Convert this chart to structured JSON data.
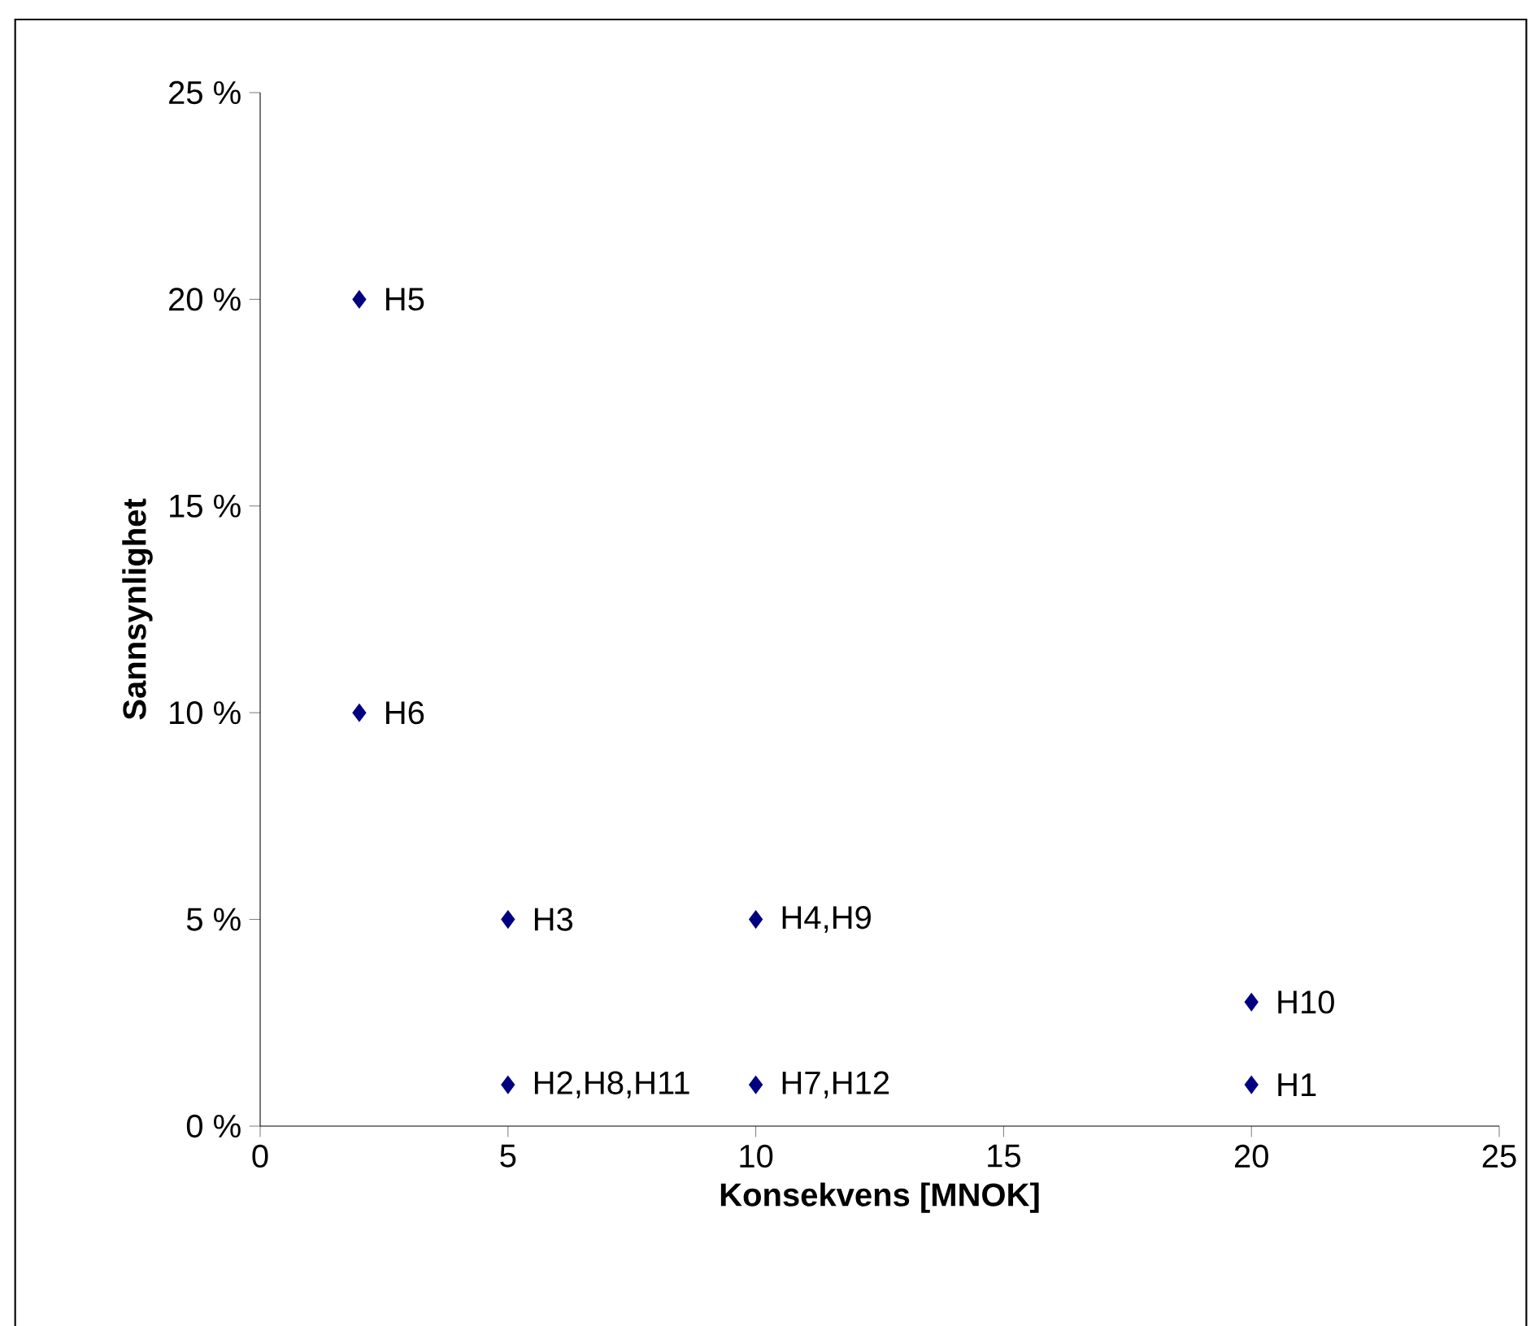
{
  "chart_data": {
    "type": "scatter",
    "xlabel": "Konsekvens [MNOK]",
    "ylabel": "Sannsynlighet",
    "x": [
      2,
      2,
      5,
      10,
      20,
      5,
      10,
      20
    ],
    "values": [
      20,
      10,
      5,
      5,
      3,
      1,
      1,
      1
    ],
    "color": "#000080",
    "marker": "diamond",
    "xlim": [
      0,
      25
    ],
    "ylim": [
      0,
      25
    ],
    "xticks": [
      0,
      5,
      10,
      15,
      20,
      25
    ],
    "yticks": [
      {
        "value": 0,
        "label": "0 %"
      },
      {
        "value": 5,
        "label": "5 %"
      },
      {
        "value": 10,
        "label": "10 %"
      },
      {
        "value": 15,
        "label": "15 %"
      },
      {
        "value": 20,
        "label": "20 %"
      },
      {
        "value": 25,
        "label": "25 %"
      }
    ],
    "annotations": [
      {
        "text": "H5",
        "x": 2,
        "y": 20
      },
      {
        "text": "H6",
        "x": 2,
        "y": 10
      },
      {
        "text": "H3",
        "x": 5,
        "y": 5
      },
      {
        "text": "H4,H9",
        "x": 10,
        "y": 5
      },
      {
        "text": "H10",
        "x": 20,
        "y": 3
      },
      {
        "text": "H2,H8,H11",
        "x": 5,
        "y": 1
      },
      {
        "text": "H7,H12",
        "x": 10,
        "y": 1
      },
      {
        "text": "H1",
        "x": 20,
        "y": 1
      }
    ]
  }
}
